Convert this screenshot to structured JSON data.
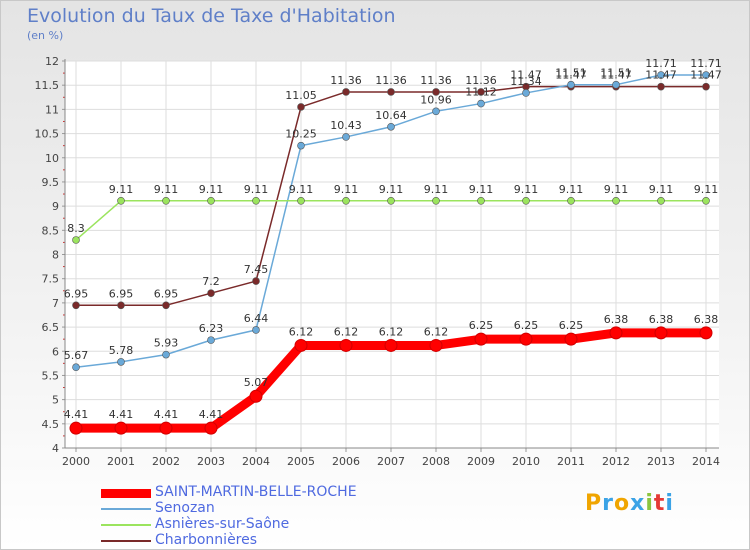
{
  "title": "Evolution du Taux de Taxe d'Habitation",
  "unit_label": "(en %)",
  "logo": {
    "text": "Proxiti",
    "letters": [
      "P",
      "r",
      "o",
      "x",
      "i",
      "t",
      "i"
    ],
    "colors": [
      "#f0a500",
      "#3ba3e6",
      "#f0a500",
      "#3ba3e6",
      "#8bc53f",
      "#e53935",
      "#3ba3e6"
    ]
  },
  "chart_data": {
    "type": "line",
    "x": [
      2000,
      2001,
      2002,
      2003,
      2004,
      2005,
      2006,
      2007,
      2008,
      2009,
      2010,
      2011,
      2012,
      2013,
      2014
    ],
    "ylim": [
      4,
      12
    ],
    "yticks": [
      "4",
      "4.5",
      "5",
      "5.5",
      "6",
      "6.5",
      "7",
      "7.5",
      "8",
      "8.5",
      "9",
      "9.5",
      "10",
      "10.5",
      "11",
      "11.5",
      "12"
    ],
    "grid": true,
    "legend_position": "bottom-left",
    "series": [
      {
        "name": "SAINT-MARTIN-BELLE-ROCHE",
        "color": "#ff0000",
        "values": [
          4.41,
          4.41,
          4.41,
          4.41,
          5.07,
          6.12,
          6.12,
          6.12,
          6.12,
          6.25,
          6.25,
          6.25,
          6.38,
          6.38,
          6.38
        ],
        "labels": [
          "4.41",
          "4.41",
          "4.41",
          "4.41",
          "5.07",
          "6.12",
          "6.12",
          "6.12",
          "6.12",
          "6.25",
          "6.25",
          "6.25",
          "6.38",
          "6.38",
          "6.38"
        ]
      },
      {
        "name": "Senozan",
        "color": "#6aa9d8",
        "values": [
          5.67,
          5.78,
          5.93,
          6.23,
          6.44,
          10.25,
          10.43,
          10.64,
          10.96,
          11.12,
          11.34,
          11.51,
          11.51,
          11.71,
          11.71
        ],
        "labels": [
          "5.67",
          "5.78",
          "5.93",
          "6.23",
          "6.44",
          "10.25",
          "10.43",
          "10.64",
          "10.96",
          "11.12",
          "11.34",
          "11.51",
          "11.51",
          "11.71",
          "11.71"
        ]
      },
      {
        "name": "Asnières-sur-Saône",
        "color": "#9be45e",
        "values": [
          8.3,
          9.11,
          9.11,
          9.11,
          9.11,
          9.11,
          9.11,
          9.11,
          9.11,
          9.11,
          9.11,
          9.11,
          9.11,
          9.11,
          9.11
        ],
        "labels": [
          "8.3",
          "9.11",
          "9.11",
          "9.11",
          "9.11",
          "9.11",
          "9.11",
          "9.11",
          "9.11",
          "9.11",
          "9.11",
          "9.11",
          "9.11",
          "9.11",
          "9.11"
        ]
      },
      {
        "name": "Charbonnières",
        "color": "#7a2a2a",
        "values": [
          6.95,
          6.95,
          6.95,
          7.2,
          7.45,
          11.05,
          11.36,
          11.36,
          11.36,
          11.36,
          11.47,
          11.47,
          11.47,
          11.47,
          11.47
        ],
        "labels": [
          "6.95",
          "6.95",
          "6.95",
          "7.2",
          "7.45",
          "11.05",
          "11.36",
          "11.36",
          "11.36",
          "11.36",
          "11.47",
          "11.47",
          "11.47",
          "11.47",
          "11.47"
        ]
      }
    ]
  }
}
